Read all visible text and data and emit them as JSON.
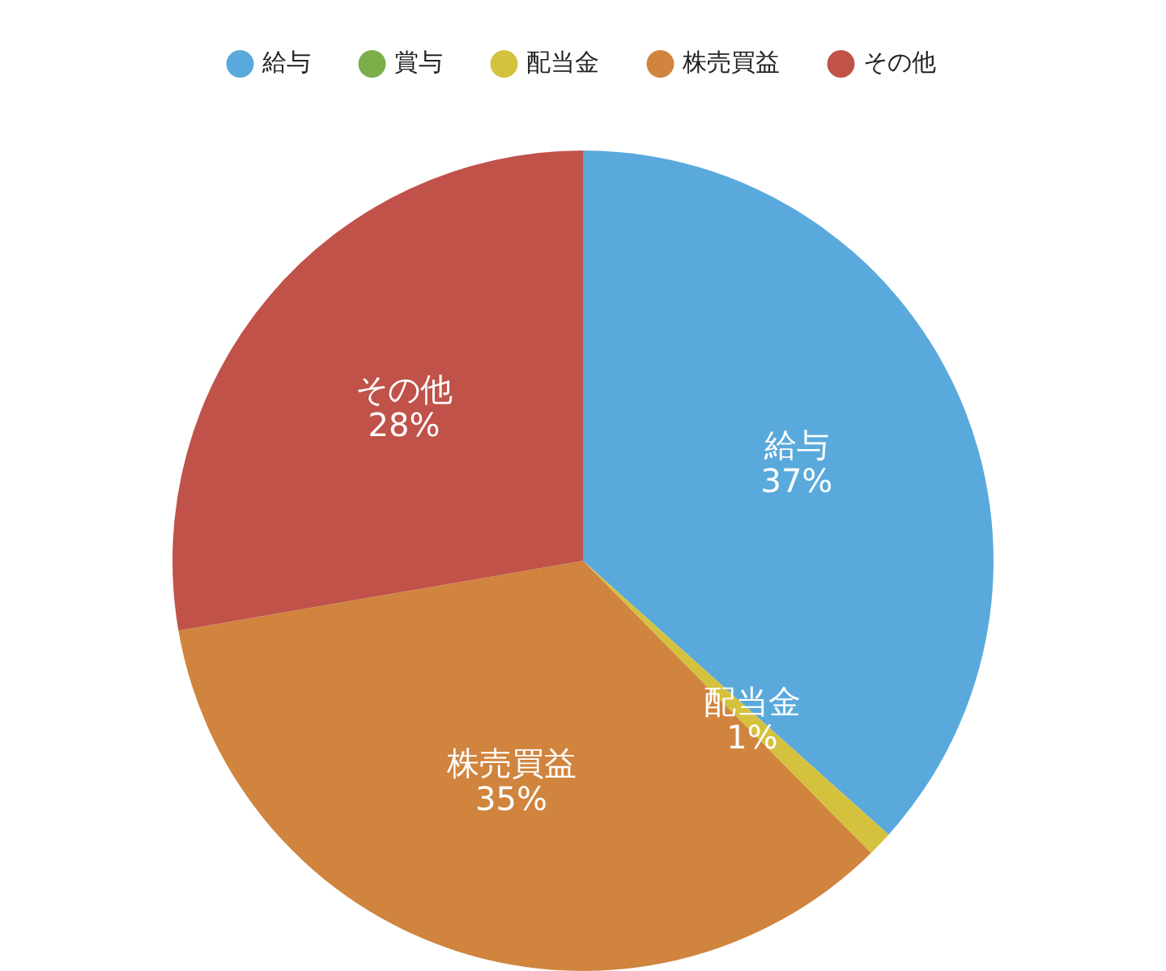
{
  "chart_data": {
    "type": "pie",
    "categories": [
      "給与",
      "賞与",
      "配当金",
      "株売買益",
      "その他"
    ],
    "values": [
      37,
      0,
      1,
      35,
      28
    ],
    "value_labels": [
      "37%",
      null,
      "1%",
      "35%",
      "28%"
    ],
    "colors": [
      "#5aa9dc",
      "#7cae4a",
      "#d4c23e",
      "#d0843e",
      "#c0524a"
    ],
    "legend": "top"
  }
}
